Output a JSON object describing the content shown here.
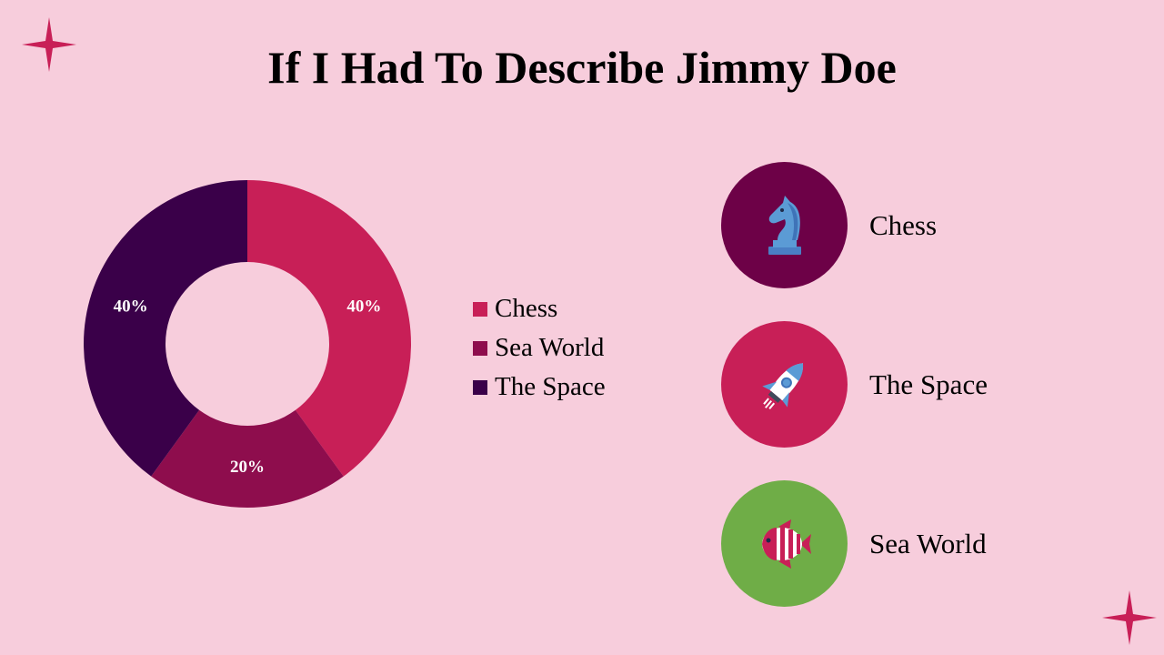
{
  "title": "If I Had To Describe Jimmy Doe",
  "colors": {
    "background": "#f7cddc",
    "accent": "#c81f57"
  },
  "chart_data": {
    "type": "pie",
    "donut": true,
    "categories": [
      "Chess",
      "Sea World",
      "The Space"
    ],
    "values": [
      40,
      20,
      40
    ],
    "data_labels": [
      "40%",
      "20%",
      "40%"
    ],
    "colors": [
      "#c81f57",
      "#8e0d4d",
      "#3a0049"
    ],
    "legend": "right"
  },
  "icon_rows": [
    {
      "label": "Chess",
      "icon": "chess-knight-icon",
      "color": "#6d0147"
    },
    {
      "label": "The Space",
      "icon": "rocket-icon",
      "color": "#c81f57"
    },
    {
      "label": "Sea World",
      "icon": "fish-icon",
      "color": "#6fad47"
    }
  ]
}
